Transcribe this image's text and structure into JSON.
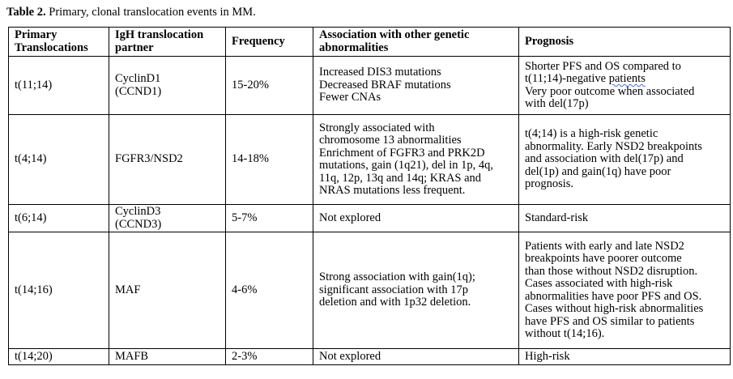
{
  "caption": {
    "label": "Table 2.",
    "text": " Primary, clonal translocation events in MM."
  },
  "headers": [
    [
      "Primary",
      "Translocations"
    ],
    [
      "IgH translocation",
      "partner"
    ],
    [
      "Frequency"
    ],
    [
      "Association with other genetic",
      "abnormalities"
    ],
    [
      "Prognosis"
    ]
  ],
  "rows": [
    {
      "translocation": "t(11;14)",
      "partner": [
        "CyclinD1",
        "(CCND1)"
      ],
      "frequency": "15-20%",
      "association": [
        "Increased DIS3 mutations",
        "Decreased BRAF mutations",
        "Fewer CNAs"
      ],
      "prognosis": [
        "Shorter PFS and OS compared to",
        "t(11;14)-negative ",
        "patients",
        "Very poor outcome when associated",
        "with del(17p)"
      ]
    },
    {
      "translocation": "t(4;14)",
      "partner": [
        "FGFR3/NSD2"
      ],
      "frequency": "14-18%",
      "association": [
        "Strongly associated with",
        "chromosome 13 abnormalities",
        "Enrichment of FGFR3 and PRK2D",
        "mutations, gain (1q21), del in 1p, 4q,",
        "11q, 12p, 13q and 14q; KRAS and",
        "NRAS mutations less frequent."
      ],
      "prognosis": [
        "t(4;14) is a high-risk genetic",
        "abnormality. Early NSD2 breakpoints",
        "and association with del(17p) and",
        "del(1p) and gain(1q) have poor",
        "prognosis."
      ]
    },
    {
      "translocation": "t(6;14)",
      "partner": [
        "CyclinD3",
        "(CCND3)"
      ],
      "frequency": "5-7%",
      "association": [
        "Not explored"
      ],
      "prognosis": [
        "Standard-risk"
      ]
    },
    {
      "translocation": "t(14;16)",
      "partner": [
        "MAF"
      ],
      "frequency": "4-6%",
      "association": [
        "Strong association with gain(1q);",
        "significant association with 17p",
        "deletion and with 1p32 deletion."
      ],
      "prognosis": [
        "Patients with early and late NSD2",
        "breakpoints have poorer outcome",
        "than those without NSD2 disruption.",
        "Cases associated with high-risk",
        "abnormalities have poor PFS and OS.",
        "Cases without high-risk abnormalities",
        "have PFS and OS similar to patients",
        "without t(14;16)."
      ]
    },
    {
      "translocation": "t(14;20)",
      "partner": [
        "MAFB"
      ],
      "frequency": "2-3%",
      "association": [
        "Not explored"
      ],
      "prognosis": [
        "High-risk"
      ]
    }
  ]
}
